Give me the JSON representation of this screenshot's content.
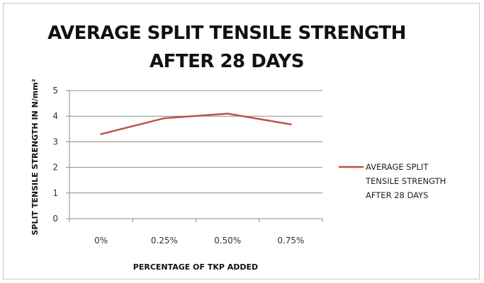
{
  "chart_data": {
    "type": "line",
    "title_line1": "AVERAGE SPLIT TENSILE STRENGTH",
    "title_line2": "AFTER 28 DAYS",
    "xlabel": "PERCENTAGE OF TKP ADDED",
    "ylabel": "SPLIT TENSILE STRENGTH IN N/mm²",
    "categories": [
      "0%",
      "0.25%",
      "0.50%",
      "0.75%"
    ],
    "ylim": [
      0,
      5
    ],
    "yticks": [
      0,
      1,
      2,
      3,
      4,
      5
    ],
    "grid": true,
    "legend_position": "right",
    "series": [
      {
        "name": "AVERAGE SPLIT TENSILE STRENGTH AFTER 28 DAYS",
        "legend_lines": [
          "AVERAGE SPLIT",
          "TENSILE STRENGTH",
          "AFTER 28 DAYS"
        ],
        "color": "#c0504d",
        "values": [
          3.3,
          3.92,
          4.1,
          3.68
        ]
      }
    ]
  }
}
